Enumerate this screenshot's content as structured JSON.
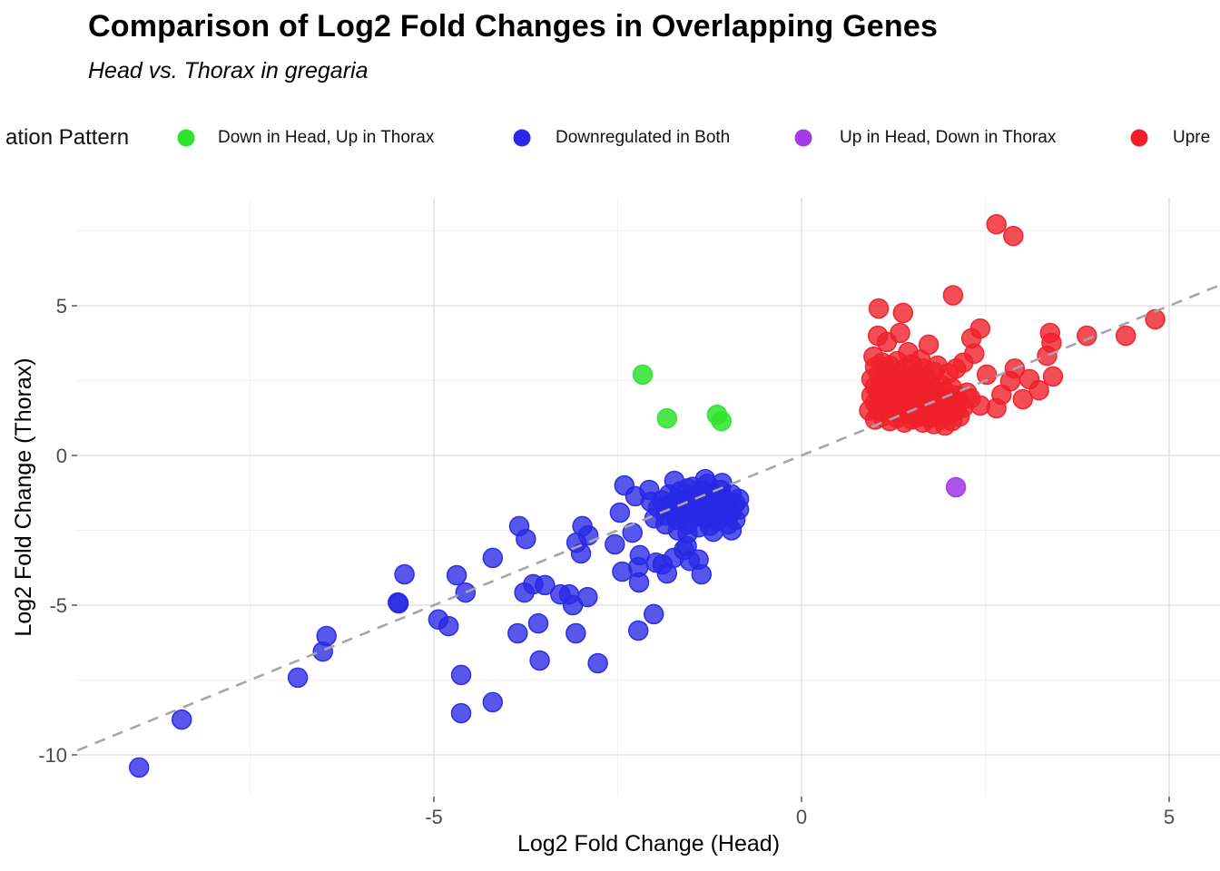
{
  "header": {
    "title": "Comparison of Log2 Fold Changes in Overlapping Genes",
    "subtitle": "Head vs. Thorax in gregaria"
  },
  "legend": {
    "title": "ation Pattern",
    "items": [
      {
        "label": "Down in Head, Up in Thorax",
        "color": "#2EE32E"
      },
      {
        "label": "Downregulated in Both",
        "color": "#2828E6"
      },
      {
        "label": "Up in Head, Down in Thorax",
        "color": "#A33AE6"
      },
      {
        "label": "Upre",
        "color": "#F0202A"
      }
    ]
  },
  "chart_data": {
    "type": "scatter",
    "title": "Comparison of Log2 Fold Changes in Overlapping Genes",
    "subtitle": "Head vs. Thorax in gregaria",
    "xlabel": "Log2 Fold Change (Head)",
    "ylabel": "Log2 Fold Change (Thorax)",
    "xlim": [
      -9.85,
      5.69
    ],
    "ylim": [
      -11.39,
      8.61
    ],
    "grid": true,
    "legend_position": "top",
    "x_major_ticks": [
      -5,
      0,
      5
    ],
    "x_major_labels": [
      "-5",
      "0",
      "5"
    ],
    "x_minor_ticks": [
      -7.5,
      -2.5,
      2.5
    ],
    "y_major_ticks": [
      5,
      0,
      -5,
      -10
    ],
    "y_major_labels": [
      "5",
      "0",
      "-5",
      "-10"
    ],
    "y_minor_ticks": [
      7.5,
      2.5,
      -2.5,
      -7.5
    ],
    "grid_major_color": "#E3E3E3",
    "grid_minor_color": "#F1F1F1",
    "identity_line": {
      "style": "dashed",
      "color": "#A6A6A6",
      "x1": -9.85,
      "y1": -9.85,
      "x2": 5.69,
      "y2": 5.69
    },
    "series": [
      {
        "name": "Down in Head, Up in Thorax",
        "color": "#2EE32E",
        "points": [
          [
            -2.16,
            2.7
          ],
          [
            -1.83,
            1.24
          ],
          [
            -1.15,
            1.36
          ],
          [
            -1.09,
            1.15
          ]
        ]
      },
      {
        "name": "Downregulated in Both",
        "color": "#2828E6",
        "points": [
          [
            -9.01,
            -10.42
          ],
          [
            -8.43,
            -8.82
          ],
          [
            -6.85,
            -7.42
          ],
          [
            -6.51,
            -6.55
          ],
          [
            -6.46,
            -6.03
          ],
          [
            -5.49,
            -4.91
          ],
          [
            -5.48,
            -4.94
          ],
          [
            -5.4,
            -3.97
          ],
          [
            -4.94,
            -5.48
          ],
          [
            -4.8,
            -5.7
          ],
          [
            -4.69,
            -4.0
          ],
          [
            -4.63,
            -8.61
          ],
          [
            -4.63,
            -7.33
          ],
          [
            -4.57,
            -4.58
          ],
          [
            -4.2,
            -8.24
          ],
          [
            -4.2,
            -3.42
          ],
          [
            -3.86,
            -5.94
          ],
          [
            -3.84,
            -2.36
          ],
          [
            -3.77,
            -4.58
          ],
          [
            -3.75,
            -2.79
          ],
          [
            -3.65,
            -4.3
          ],
          [
            -3.58,
            -5.61
          ],
          [
            -3.56,
            -6.85
          ],
          [
            -3.49,
            -4.33
          ],
          [
            -3.28,
            -4.64
          ],
          [
            -3.16,
            -4.64
          ],
          [
            -3.11,
            -5.0
          ],
          [
            -3.07,
            -5.94
          ],
          [
            -3.06,
            -2.91
          ],
          [
            -3.0,
            -3.27
          ],
          [
            -2.98,
            -2.36
          ],
          [
            -2.91,
            -4.73
          ],
          [
            -2.9,
            -2.67
          ],
          [
            -2.77,
            -6.94
          ],
          [
            -2.54,
            -2.97
          ],
          [
            -2.47,
            -1.91
          ],
          [
            -2.44,
            -3.88
          ],
          [
            -2.41,
            -1.0
          ],
          [
            -2.3,
            -2.58
          ],
          [
            -2.26,
            -1.36
          ],
          [
            -2.22,
            -5.85
          ],
          [
            -2.22,
            -3.73
          ],
          [
            -2.21,
            -4.24
          ],
          [
            -2.2,
            -3.33
          ],
          [
            -2.07,
            -1.15
          ],
          [
            -2.01,
            -5.3
          ],
          [
            -1.98,
            -3.58
          ],
          [
            -1.89,
            -3.64
          ],
          [
            -1.83,
            -3.94
          ],
          [
            -1.74,
            -3.42
          ],
          [
            -1.73,
            -0.85
          ],
          [
            -1.6,
            -3.15
          ],
          [
            -1.56,
            -3.03
          ],
          [
            -1.52,
            -3.52
          ],
          [
            -1.4,
            -3.48
          ],
          [
            -1.36,
            -3.97
          ],
          [
            -1.31,
            -0.79
          ],
          [
            -2.05,
            -1.55
          ],
          [
            -1.95,
            -1.75
          ],
          [
            -1.9,
            -1.5
          ],
          [
            -1.85,
            -2.0
          ],
          [
            -1.8,
            -1.3
          ],
          [
            -1.8,
            -1.65
          ],
          [
            -1.75,
            -1.9
          ],
          [
            -1.7,
            -1.45
          ],
          [
            -1.7,
            -2.15
          ],
          [
            -1.65,
            -1.2
          ],
          [
            -1.65,
            -1.7
          ],
          [
            -1.6,
            -1.95
          ],
          [
            -1.6,
            -1.5
          ],
          [
            -1.55,
            -2.3
          ],
          [
            -1.55,
            -1.1
          ],
          [
            -1.5,
            -1.65
          ],
          [
            -1.5,
            -1.85
          ],
          [
            -1.45,
            -1.35
          ],
          [
            -1.45,
            -2.05
          ],
          [
            -1.4,
            -1.6
          ],
          [
            -1.4,
            -2.4
          ],
          [
            -1.35,
            -1.15
          ],
          [
            -1.35,
            -1.8
          ],
          [
            -1.3,
            -1.5
          ],
          [
            -1.3,
            -2.1
          ],
          [
            -1.25,
            -1.7
          ],
          [
            -1.25,
            -2.35
          ],
          [
            -1.2,
            -1.3
          ],
          [
            -1.2,
            -1.95
          ],
          [
            -1.15,
            -1.55
          ],
          [
            -1.15,
            -2.2
          ],
          [
            -1.1,
            -1.75
          ],
          [
            -1.1,
            -1.15
          ],
          [
            -1.05,
            -2.0
          ],
          [
            -1.05,
            -1.45
          ],
          [
            -1.0,
            -1.65
          ],
          [
            -1.0,
            -2.3
          ],
          [
            -0.95,
            -1.3
          ],
          [
            -0.95,
            -1.9
          ],
          [
            -0.9,
            -1.6
          ],
          [
            -0.9,
            -2.15
          ],
          [
            -0.85,
            -1.45
          ],
          [
            -0.85,
            -1.8
          ],
          [
            -1.28,
            -0.95
          ],
          [
            -1.08,
            -0.92
          ],
          [
            -1.48,
            -1.05
          ],
          [
            -1.68,
            -2.5
          ],
          [
            -1.2,
            -2.55
          ],
          [
            -0.95,
            -2.5
          ],
          [
            -1.85,
            -2.3
          ],
          [
            -2.0,
            -2.1
          ],
          [
            -1.55,
            -2.6
          ]
        ]
      },
      {
        "name": "Up in Head, Down in Thorax",
        "color": "#A33AE6",
        "points": [
          [
            2.1,
            -1.06
          ]
        ]
      },
      {
        "name": "Upre",
        "color": "#F0202A",
        "points": [
          [
            2.65,
            7.72
          ],
          [
            2.88,
            7.33
          ],
          [
            2.06,
            5.35
          ],
          [
            1.05,
            4.91
          ],
          [
            1.38,
            4.76
          ],
          [
            4.81,
            4.55
          ],
          [
            4.41,
            4.0
          ],
          [
            3.88,
            4.0
          ],
          [
            3.38,
            4.09
          ],
          [
            3.4,
            3.76
          ],
          [
            2.43,
            4.24
          ],
          [
            2.31,
            3.91
          ],
          [
            1.04,
            4.0
          ],
          [
            1.34,
            4.09
          ],
          [
            1.16,
            3.79
          ],
          [
            1.73,
            3.7
          ],
          [
            3.34,
            3.33
          ],
          [
            3.42,
            2.64
          ],
          [
            3.23,
            2.18
          ],
          [
            2.84,
            2.48
          ],
          [
            2.72,
            2.03
          ],
          [
            3.01,
            1.88
          ],
          [
            2.52,
            2.7
          ],
          [
            2.43,
            1.67
          ],
          [
            2.65,
            1.58
          ],
          [
            2.9,
            2.9
          ],
          [
            3.1,
            2.55
          ],
          [
            2.35,
            3.4
          ],
          [
            2.2,
            3.1
          ],
          [
            0.98,
            3.3
          ],
          [
            1.45,
            3.45
          ],
          [
            1.62,
            3.2
          ],
          [
            1.85,
            3.0
          ],
          [
            2.0,
            2.75
          ],
          [
            2.1,
            2.9
          ],
          [
            0.92,
            1.5
          ],
          [
            0.95,
            2.0
          ],
          [
            0.95,
            2.55
          ],
          [
            1.0,
            1.2
          ],
          [
            1.0,
            1.75
          ],
          [
            1.0,
            2.3
          ],
          [
            1.0,
            2.95
          ],
          [
            1.05,
            1.5
          ],
          [
            1.05,
            2.1
          ],
          [
            1.05,
            2.7
          ],
          [
            1.1,
            1.3
          ],
          [
            1.1,
            1.9
          ],
          [
            1.1,
            2.45
          ],
          [
            1.1,
            3.1
          ],
          [
            1.15,
            1.6
          ],
          [
            1.15,
            2.2
          ],
          [
            1.15,
            2.85
          ],
          [
            1.2,
            1.15
          ],
          [
            1.2,
            1.75
          ],
          [
            1.2,
            2.35
          ],
          [
            1.2,
            3.0
          ],
          [
            1.25,
            1.45
          ],
          [
            1.25,
            2.0
          ],
          [
            1.25,
            2.6
          ],
          [
            1.3,
            1.25
          ],
          [
            1.3,
            1.85
          ],
          [
            1.3,
            2.5
          ],
          [
            1.3,
            3.15
          ],
          [
            1.35,
            1.55
          ],
          [
            1.35,
            2.15
          ],
          [
            1.35,
            2.75
          ],
          [
            1.4,
            1.1
          ],
          [
            1.4,
            1.7
          ],
          [
            1.4,
            2.3
          ],
          [
            1.4,
            2.9
          ],
          [
            1.45,
            1.4
          ],
          [
            1.45,
            2.0
          ],
          [
            1.45,
            2.55
          ],
          [
            1.5,
            1.2
          ],
          [
            1.5,
            1.8
          ],
          [
            1.5,
            2.4
          ],
          [
            1.5,
            3.05
          ],
          [
            1.55,
            1.5
          ],
          [
            1.55,
            2.1
          ],
          [
            1.55,
            2.7
          ],
          [
            1.6,
            1.3
          ],
          [
            1.6,
            1.9
          ],
          [
            1.6,
            2.5
          ],
          [
            1.65,
            1.1
          ],
          [
            1.65,
            1.65
          ],
          [
            1.65,
            2.25
          ],
          [
            1.65,
            2.9
          ],
          [
            1.7,
            1.45
          ],
          [
            1.7,
            2.05
          ],
          [
            1.7,
            2.6
          ],
          [
            1.75,
            1.25
          ],
          [
            1.75,
            1.85
          ],
          [
            1.75,
            2.4
          ],
          [
            1.8,
            1.05
          ],
          [
            1.8,
            1.6
          ],
          [
            1.8,
            2.2
          ],
          [
            1.8,
            2.8
          ],
          [
            1.85,
            1.4
          ],
          [
            1.85,
            2.0
          ],
          [
            1.9,
            1.2
          ],
          [
            1.9,
            1.75
          ],
          [
            1.9,
            2.35
          ],
          [
            1.95,
            1.0
          ],
          [
            1.95,
            1.55
          ],
          [
            1.95,
            2.15
          ],
          [
            2.0,
            1.35
          ],
          [
            2.0,
            1.9
          ],
          [
            2.05,
            1.15
          ],
          [
            2.05,
            1.7
          ],
          [
            2.05,
            2.25
          ],
          [
            2.1,
            1.5
          ],
          [
            2.1,
            2.0
          ],
          [
            2.15,
            1.3
          ],
          [
            2.15,
            1.8
          ],
          [
            2.2,
            1.6
          ],
          [
            2.25,
            2.1
          ],
          [
            2.3,
            1.9
          ]
        ]
      }
    ]
  }
}
